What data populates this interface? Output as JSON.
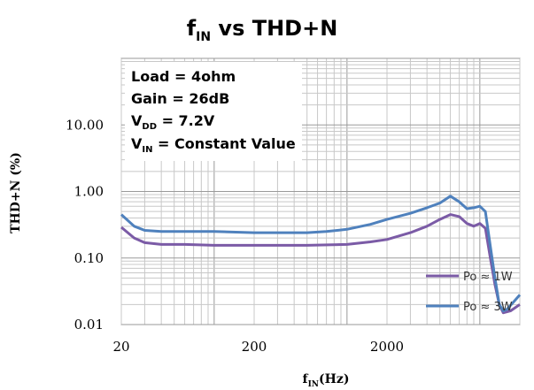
{
  "chart_data": {
    "type": "line",
    "title": "f",
    "title_sub": "IN",
    "title_rest": " vs THD+N",
    "xlabel": "f",
    "xlabel_sub": "IN",
    "xlabel_rest": "(Hz)",
    "ylabel": "THD+N (%)",
    "x_scale": "log",
    "y_scale": "log",
    "xlim": [
      20,
      20000
    ],
    "ylim": [
      0.01,
      100
    ],
    "x_ticks": [
      {
        "value": 20,
        "label": "20"
      },
      {
        "value": 200,
        "label": "200"
      },
      {
        "value": 2000,
        "label": "2000"
      }
    ],
    "y_ticks": [
      {
        "value": 10,
        "label": "10.00"
      },
      {
        "value": 1,
        "label": "1.00"
      },
      {
        "value": 0.1,
        "label": "0.10"
      },
      {
        "value": 0.01,
        "label": "0.01"
      }
    ],
    "grid": true,
    "legend_position": "bottom-right",
    "annotations": {
      "load": "Load = 4ohm",
      "gain": "Gain = 26dB",
      "vdd_main": "V",
      "vdd_sub": "DD",
      "vdd_rest": " = 7.2V",
      "vin_main": "V",
      "vin_sub": "IN",
      "vin_rest": " = Constant Value"
    },
    "series": [
      {
        "name": "Po ≈ 1W",
        "color": "#7b5ba6",
        "points": [
          [
            20,
            0.29
          ],
          [
            25,
            0.2
          ],
          [
            30,
            0.17
          ],
          [
            40,
            0.16
          ],
          [
            60,
            0.16
          ],
          [
            100,
            0.155
          ],
          [
            200,
            0.155
          ],
          [
            500,
            0.155
          ],
          [
            1000,
            0.16
          ],
          [
            1500,
            0.175
          ],
          [
            2000,
            0.19
          ],
          [
            3000,
            0.24
          ],
          [
            4000,
            0.3
          ],
          [
            5000,
            0.38
          ],
          [
            6000,
            0.45
          ],
          [
            7000,
            0.42
          ],
          [
            8000,
            0.33
          ],
          [
            9000,
            0.3
          ],
          [
            10000,
            0.33
          ],
          [
            11000,
            0.28
          ],
          [
            12000,
            0.1
          ],
          [
            13000,
            0.04
          ],
          [
            14000,
            0.02
          ],
          [
            15000,
            0.015
          ],
          [
            17000,
            0.016
          ],
          [
            20000,
            0.02
          ]
        ]
      },
      {
        "name": "Po ≈ 3W",
        "color": "#4f81bd",
        "points": [
          [
            20,
            0.45
          ],
          [
            25,
            0.3
          ],
          [
            30,
            0.26
          ],
          [
            40,
            0.25
          ],
          [
            100,
            0.25
          ],
          [
            200,
            0.24
          ],
          [
            500,
            0.24
          ],
          [
            700,
            0.25
          ],
          [
            1000,
            0.27
          ],
          [
            1500,
            0.32
          ],
          [
            2000,
            0.38
          ],
          [
            3000,
            0.47
          ],
          [
            4000,
            0.57
          ],
          [
            5000,
            0.67
          ],
          [
            6000,
            0.85
          ],
          [
            7000,
            0.7
          ],
          [
            8000,
            0.55
          ],
          [
            9000,
            0.57
          ],
          [
            10000,
            0.6
          ],
          [
            11000,
            0.5
          ],
          [
            12000,
            0.15
          ],
          [
            13000,
            0.05
          ],
          [
            14000,
            0.02
          ],
          [
            15000,
            0.016
          ],
          [
            16000,
            0.017
          ],
          [
            18000,
            0.022
          ],
          [
            20000,
            0.028
          ]
        ]
      }
    ]
  }
}
